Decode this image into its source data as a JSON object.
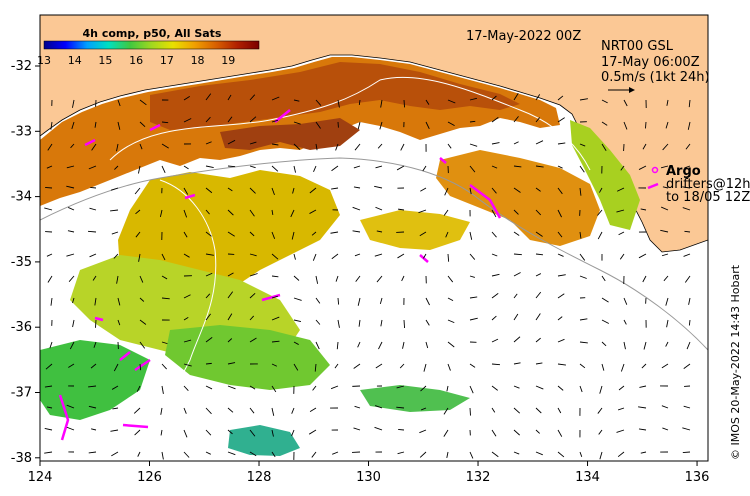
{
  "map": {
    "date_label": "17-May-2022 00Z",
    "current_product": [
      "NRT00 GSL",
      "17-May 06:00Z"
    ],
    "scale_label": "0.5m/s (1kt 24h)",
    "argo_label": "Argo",
    "drifters_lines": [
      "drifters@12h",
      "to 18/05 12Z"
    ],
    "credit": "© IMOS 20-May-2022 14:43 Hobart",
    "colorbar": {
      "title": "4h comp, p50, All Sats",
      "ticks": [
        "13",
        "14",
        "15",
        "16",
        "17",
        "18",
        "19"
      ],
      "min": 13,
      "max": 20,
      "colors": [
        "#00008b",
        "#0000ff",
        "#00a0ff",
        "#00e0c0",
        "#40c840",
        "#a0d820",
        "#e8e000",
        "#f0a000",
        "#d86000",
        "#b02000",
        "#7a0000"
      ]
    },
    "x_ticks": [
      "124",
      "126",
      "128",
      "130",
      "132",
      "134",
      "136"
    ],
    "y_ticks": [
      "-32",
      "-33",
      "-34",
      "-35",
      "-36",
      "-37",
      "-38"
    ],
    "colors": {
      "land": "#fbc895",
      "coast": "#000000",
      "argo": "#ff00ff"
    }
  }
}
